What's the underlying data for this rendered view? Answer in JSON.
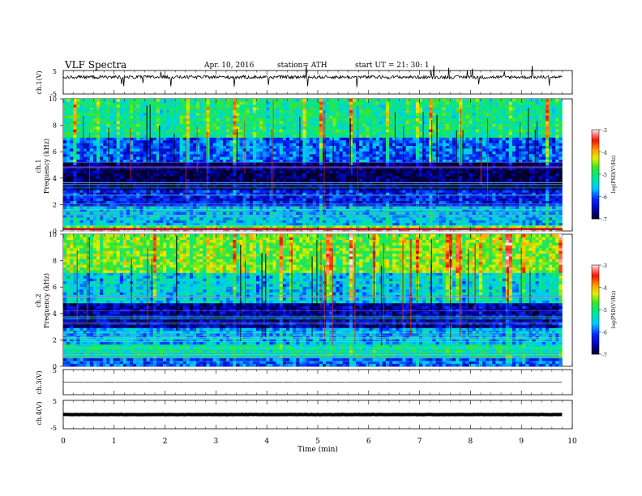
{
  "header": {
    "title": "VLF  Spectra",
    "date": "Apr. 10, 2016",
    "station": "station= ATH",
    "start": "start  UT  =   21: 30: 1"
  },
  "chart_data": [
    {
      "id": "ch1-waveform",
      "type": "line",
      "ylabel": "ch.1(V)",
      "ylim": [
        -5,
        5
      ],
      "y_ticks": [
        "5",
        "-5"
      ],
      "x_range": [
        0,
        9.8
      ],
      "baseline": 2.2,
      "color": "#000000"
    },
    {
      "id": "ch1-spectrogram",
      "type": "heatmap",
      "ylabel_channel": "ch.1",
      "ylabel": "Frequency  (kHz)",
      "ylim": [
        0,
        10
      ],
      "y_ticks": [
        "0",
        "2",
        "4",
        "6",
        "8",
        "10"
      ],
      "x_range": [
        0,
        9.8
      ],
      "colorbar": {
        "label": "log(PSD(V²/Hz)",
        "range": [
          -7,
          -3
        ],
        "ticks": [
          "-3",
          "-4",
          "-5",
          "-6",
          "-7"
        ]
      },
      "bands": [
        {
          "from": 0,
          "to": 0.25,
          "level": -3.2
        },
        {
          "from": 0.25,
          "to": 0.5,
          "level": -4.6
        },
        {
          "from": 0.5,
          "to": 1.8,
          "level": -5.6
        },
        {
          "from": 1.8,
          "to": 3.2,
          "level": -6.3
        },
        {
          "from": 3.2,
          "to": 5.2,
          "level": -6.9
        },
        {
          "from": 5.2,
          "to": 7.0,
          "level": -6.0
        },
        {
          "from": 7.0,
          "to": 10.0,
          "level": -5.1
        }
      ]
    },
    {
      "id": "ch2-spectrogram",
      "type": "heatmap",
      "ylabel_channel": "ch.2",
      "ylabel": "Frequency  (kHz)",
      "ylim": [
        0,
        10
      ],
      "y_ticks": [
        "0",
        "2",
        "4",
        "6",
        "8",
        "10"
      ],
      "x_range": [
        0,
        9.8
      ],
      "colorbar": {
        "label": "log(PSD(V²/Hz)",
        "range": [
          -7,
          -3
        ],
        "ticks": [
          "-3",
          "-4",
          "-5",
          "-6",
          "-7"
        ]
      },
      "bands": [
        {
          "from": 0,
          "to": 0.6,
          "level": -6.0
        },
        {
          "from": 0.6,
          "to": 1.6,
          "level": -5.2
        },
        {
          "from": 1.6,
          "to": 3.0,
          "level": -5.7
        },
        {
          "from": 3.0,
          "to": 4.8,
          "level": -6.6
        },
        {
          "from": 4.8,
          "to": 7.0,
          "level": -5.5
        },
        {
          "from": 7.0,
          "to": 10.0,
          "level": -4.6
        }
      ]
    },
    {
      "id": "ch3-waveform",
      "type": "line",
      "ylabel": "ch.3(V)",
      "ylim": [
        -5,
        5
      ],
      "y_ticks": [
        "5",
        "-5"
      ],
      "x_range": [
        0,
        9.8
      ],
      "baseline": 0,
      "color": "#000000"
    },
    {
      "id": "ch4-waveform",
      "type": "line",
      "ylabel": "ch.4(V)",
      "ylim": [
        -5,
        5
      ],
      "y_ticks": [
        "5",
        "-5"
      ],
      "x_range": [
        0,
        9.8
      ],
      "baseline": 0,
      "color": "#000000"
    }
  ],
  "x_axis": {
    "label": "Time  (min)",
    "range": [
      0,
      10
    ],
    "ticks": [
      "0",
      "1",
      "2",
      "3",
      "4",
      "5",
      "6",
      "7",
      "8",
      "9",
      "10"
    ]
  }
}
